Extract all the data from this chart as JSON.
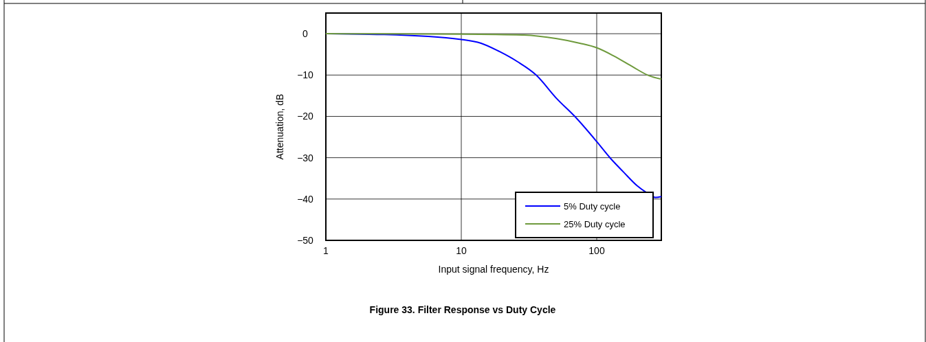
{
  "chart_data": {
    "type": "line",
    "title": "Figure 33. Filter Response vs Duty Cycle",
    "xlabel": "Input signal frequency, Hz",
    "ylabel": "Attenuation, dB",
    "log": "x",
    "xlim": [
      1,
      300
    ],
    "ylim": [
      -50,
      5
    ],
    "xticks": [
      1,
      10,
      100
    ],
    "yticks": [
      0,
      {
        "value": -10,
        "label": "−10"
      },
      {
        "value": -20,
        "label": "−20"
      },
      {
        "value": -30,
        "label": "−30"
      },
      {
        "value": -40,
        "label": "−40"
      },
      {
        "value": -50,
        "label": "−50"
      }
    ],
    "grid": true,
    "legend": "bottom right",
    "line_style": "solid",
    "series": [
      {
        "name": "5% Duty cycle",
        "color": "#0000ff",
        "x": [
          1,
          2.7,
          10,
          14,
          19.1,
          26.1,
          35.7,
          50.7,
          69.3,
          100,
          126,
          157,
          199,
          232,
          271,
          300
        ],
        "values": [
          0,
          -0.2,
          -1.4,
          -2.3,
          -4.3,
          -6.8,
          -10,
          -15.7,
          -20.1,
          -26.1,
          -30.1,
          -33.4,
          -36.8,
          -38.4,
          -39.6,
          -39.4
        ]
      },
      {
        "name": "25% Duty cycle",
        "color": "#6e9a3c",
        "x": [
          1,
          10,
          28.2,
          50.7,
          75,
          100,
          134,
          184,
          241,
          300
        ],
        "values": [
          0,
          -0.1,
          -0.3,
          -1.2,
          -2.3,
          -3.4,
          -5.4,
          -8,
          -10.1,
          -11
        ]
      }
    ]
  }
}
